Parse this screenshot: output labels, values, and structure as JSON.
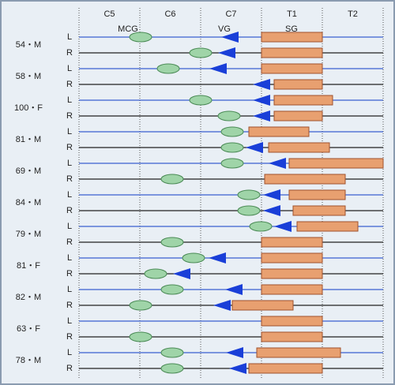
{
  "columns": [
    "C5",
    "C6",
    "C7",
    "T1",
    "T2"
  ],
  "legend": {
    "mcg": "MCG",
    "vg": "VG",
    "sg": "SG"
  },
  "patients": [
    {
      "label": "54・M",
      "sides": [
        "L",
        "R"
      ]
    },
    {
      "label": "58・M",
      "sides": [
        "L",
        "R"
      ]
    },
    {
      "label": "100・F",
      "sides": [
        "L",
        "R"
      ]
    },
    {
      "label": "81・M",
      "sides": [
        "L",
        "R"
      ]
    },
    {
      "label": "69・M",
      "sides": [
        "L",
        "R"
      ]
    },
    {
      "label": "84・M",
      "sides": [
        "L",
        "R"
      ]
    },
    {
      "label": "79・M",
      "sides": [
        "L",
        "R"
      ]
    },
    {
      "label": "81・F",
      "sides": [
        "L",
        "R"
      ]
    },
    {
      "label": "82・M",
      "sides": [
        "L",
        "R"
      ]
    },
    {
      "label": "63・F",
      "sides": [
        "L",
        "R"
      ]
    },
    {
      "label": "78・M",
      "sides": [
        "L",
        "R"
      ]
    }
  ]
}
